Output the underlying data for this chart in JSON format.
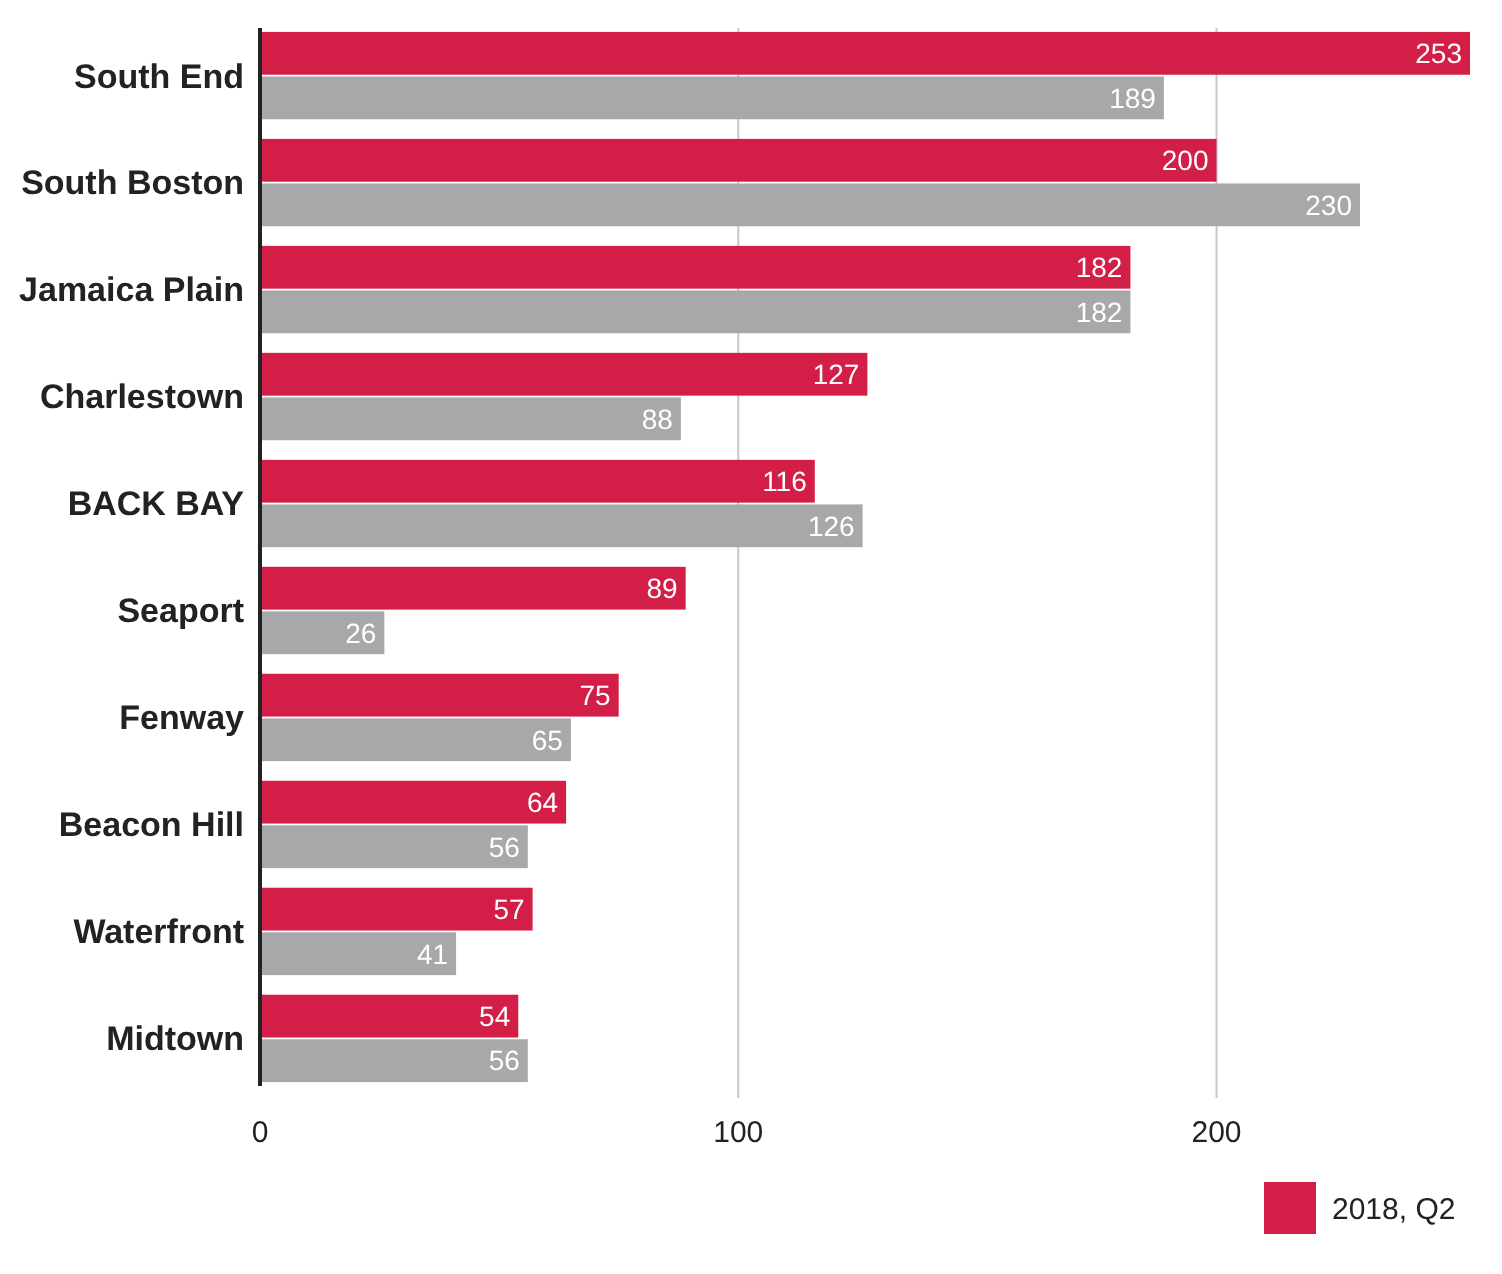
{
  "chart_data": {
    "type": "bar",
    "orientation": "horizontal",
    "categories": [
      "South End",
      "South Boston",
      "Jamaica Plain",
      "Charlestown",
      "BACK BAY",
      "Seaport",
      "Fenway",
      "Beacon Hill",
      "Waterfront",
      "Midtown"
    ],
    "series": [
      {
        "name": "2018, Q2",
        "color": "#d31e47",
        "values": [
          253,
          200,
          182,
          127,
          116,
          89,
          75,
          64,
          57,
          54
        ]
      },
      {
        "color": "#a7a8aa",
        "values": [
          189,
          230,
          182,
          88,
          126,
          26,
          65,
          56,
          41,
          56
        ]
      }
    ],
    "xlim": [
      0,
      253
    ],
    "xticks": [
      0,
      100,
      200
    ],
    "grid": "x",
    "legend": "bottom right",
    "data_labels": true
  }
}
